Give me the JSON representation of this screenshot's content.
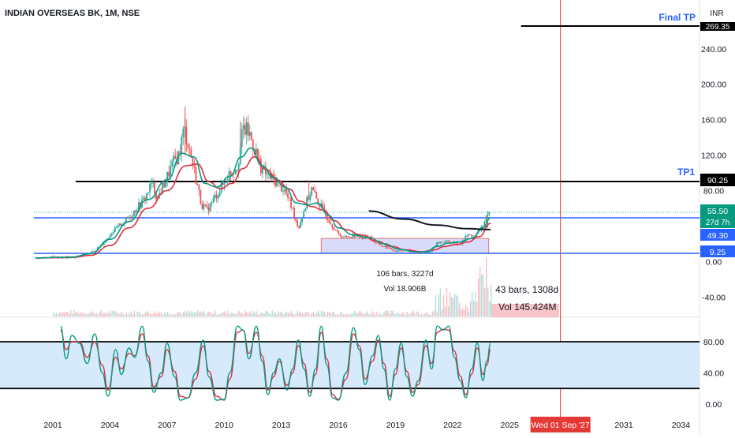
{
  "header": {
    "title": "INDIAN OVERSEAS BK, 1M, NSE",
    "currency": "INR"
  },
  "colors": {
    "up": "#26a69a",
    "down": "#ef5350",
    "ma_fast": "#089981",
    "ma_slow": "#e0303f",
    "blue_line": "#2962ff",
    "text_blue": "#2962ff",
    "cursor": "#e53935",
    "rsi_fill": "#d6eafc",
    "date_badge": "#e53935"
  },
  "annotations": {
    "final_tp_label": "Final TP",
    "final_tp_value": "269.35",
    "tp1_label": "TP1",
    "tp1_value": "90.25",
    "price_now": "55.50",
    "countdown": "27d 7h",
    "ma_value": "49.30",
    "support_value": "9.25",
    "range1_bars": "106 bars, 3227d",
    "range1_vol": "Vol 18.906B",
    "range2_bars": "43 bars, 1308d",
    "range2_vol": "Vol 145.424M",
    "crosshair_date": "Wed 01 Sep '27"
  },
  "chart_data": [
    {
      "type": "candlestick",
      "title": "INDIAN OVERSEAS BK, 1M, NSE",
      "x_ticks": [
        "2001",
        "2004",
        "2007",
        "2010",
        "2013",
        "2016",
        "2019",
        "2022",
        "2025",
        "2031",
        "2034"
      ],
      "y_ticks": [
        "240.00",
        "200.00",
        "160.00",
        "120.00",
        "80.00",
        "0.00",
        "-40.00"
      ],
      "ylim": [
        -62,
        290
      ],
      "xlim": [
        2000.0,
        2035.4
      ],
      "price_path": [
        [
          2000.1,
          4
        ],
        [
          2001.0,
          5
        ],
        [
          2001.6,
          4.5
        ],
        [
          2002.2,
          5
        ],
        [
          2002.8,
          8
        ],
        [
          2003.2,
          12
        ],
        [
          2003.7,
          22
        ],
        [
          2004.1,
          33
        ],
        [
          2004.5,
          40
        ],
        [
          2005.0,
          50
        ],
        [
          2005.4,
          60
        ],
        [
          2005.8,
          70
        ],
        [
          2006.2,
          88
        ],
        [
          2006.5,
          72
        ],
        [
          2006.9,
          90
        ],
        [
          2007.3,
          110
        ],
        [
          2007.6,
          120
        ],
        [
          2007.9,
          150
        ],
        [
          2008.2,
          125
        ],
        [
          2008.5,
          95
        ],
        [
          2008.8,
          65
        ],
        [
          2009.1,
          58
        ],
        [
          2009.5,
          72
        ],
        [
          2009.9,
          85
        ],
        [
          2010.3,
          100
        ],
        [
          2010.7,
          108
        ],
        [
          2011.0,
          150
        ],
        [
          2011.3,
          145
        ],
        [
          2011.6,
          128
        ],
        [
          2011.9,
          108
        ],
        [
          2012.2,
          98
        ],
        [
          2012.6,
          92
        ],
        [
          2012.9,
          86
        ],
        [
          2013.2,
          80
        ],
        [
          2013.6,
          58
        ],
        [
          2013.9,
          38
        ],
        [
          2014.3,
          65
        ],
        [
          2014.6,
          82
        ],
        [
          2014.9,
          68
        ],
        [
          2015.2,
          58
        ],
        [
          2015.6,
          44
        ],
        [
          2016.0,
          30
        ],
        [
          2016.4,
          27
        ],
        [
          2016.8,
          30
        ],
        [
          2017.2,
          27
        ],
        [
          2017.6,
          29
        ],
        [
          2018.0,
          20
        ],
        [
          2018.5,
          16
        ],
        [
          2019.0,
          12
        ],
        [
          2019.5,
          13
        ],
        [
          2020.0,
          11
        ],
        [
          2020.4,
          9
        ],
        [
          2020.8,
          11
        ],
        [
          2021.2,
          21
        ],
        [
          2021.6,
          23
        ],
        [
          2022.0,
          21
        ],
        [
          2022.4,
          20
        ],
        [
          2022.8,
          30
        ],
        [
          2023.2,
          28
        ],
        [
          2023.6,
          42
        ],
        [
          2024.0,
          55.5
        ]
      ],
      "moving_average_fast": [
        [
          2000.1,
          4
        ],
        [
          2002.0,
          5
        ],
        [
          2003.0,
          9
        ],
        [
          2004.0,
          25
        ],
        [
          2005.0,
          45
        ],
        [
          2006.0,
          70
        ],
        [
          2007.0,
          92
        ],
        [
          2007.8,
          122
        ],
        [
          2008.4,
          118
        ],
        [
          2009.0,
          88
        ],
        [
          2009.6,
          84
        ],
        [
          2010.3,
          96
        ],
        [
          2010.9,
          118
        ],
        [
          2011.4,
          128
        ],
        [
          2012.0,
          108
        ],
        [
          2012.6,
          95
        ],
        [
          2013.2,
          84
        ],
        [
          2013.8,
          66
        ],
        [
          2014.4,
          64
        ],
        [
          2014.9,
          66
        ],
        [
          2015.5,
          52
        ],
        [
          2016.0,
          38
        ],
        [
          2016.8,
          30
        ],
        [
          2017.6,
          27
        ],
        [
          2018.4,
          20
        ],
        [
          2019.2,
          14
        ],
        [
          2020.0,
          11
        ],
        [
          2020.6,
          11
        ],
        [
          2021.2,
          17
        ],
        [
          2021.8,
          21
        ],
        [
          2022.4,
          22
        ],
        [
          2023.0,
          26
        ],
        [
          2023.6,
          38
        ],
        [
          2024.0,
          49.3
        ]
      ],
      "moving_average_slow": [
        [
          2000.1,
          4
        ],
        [
          2002.0,
          4.5
        ],
        [
          2003.0,
          7
        ],
        [
          2004.0,
          18
        ],
        [
          2005.0,
          38
        ],
        [
          2006.0,
          60
        ],
        [
          2007.0,
          80
        ],
        [
          2008.0,
          108
        ],
        [
          2008.6,
          110
        ],
        [
          2009.2,
          90
        ],
        [
          2009.8,
          82
        ],
        [
          2010.4,
          88
        ],
        [
          2011.0,
          105
        ],
        [
          2011.6,
          118
        ],
        [
          2012.2,
          104
        ],
        [
          2012.8,
          92
        ],
        [
          2013.4,
          82
        ],
        [
          2014.0,
          68
        ],
        [
          2014.6,
          62
        ],
        [
          2015.2,
          58
        ],
        [
          2015.8,
          46
        ],
        [
          2016.4,
          36
        ],
        [
          2017.2,
          30
        ],
        [
          2018.0,
          23
        ],
        [
          2018.8,
          17
        ],
        [
          2019.6,
          13
        ],
        [
          2020.4,
          11
        ],
        [
          2021.0,
          13
        ],
        [
          2021.6,
          17
        ],
        [
          2022.2,
          19
        ],
        [
          2022.8,
          22
        ],
        [
          2023.4,
          28
        ],
        [
          2024.0,
          43
        ]
      ],
      "long_curve": [
        [
          2017.6,
          57
        ],
        [
          2019.4,
          48
        ],
        [
          2021.2,
          41
        ],
        [
          2022.8,
          37
        ],
        [
          2024.0,
          36
        ]
      ],
      "horizontal_lines": [
        {
          "label": "Final TP",
          "value": 269.35,
          "x_from": 2025.6
        },
        {
          "label": "TP1",
          "value": 90.25,
          "x_from": 2002.2
        },
        {
          "label": "",
          "value": 55.5,
          "x_from": 2000.0,
          "dotted": true
        },
        {
          "label": "",
          "value": 49.3,
          "x_from": 2000.0,
          "blue": true
        },
        {
          "label": "",
          "value": 9.25,
          "x_from": 2000.0,
          "blue": true
        }
      ],
      "ranges": [
        {
          "x": [
            2015.1,
            2023.9
          ],
          "y": [
            9.25,
            26
          ],
          "label": "106 bars, 3227d",
          "volume": "Vol 18.906B"
        },
        {
          "x": [
            2024.0,
            2027.6
          ],
          "y": [
            -54,
            -46
          ],
          "label": "43 bars, 1308d",
          "volume": "Vol 145.424M"
        }
      ],
      "crosshair_x": 2027.67
    },
    {
      "type": "line",
      "title": "",
      "y_ticks": [
        "80.00",
        "40.00",
        "0.00"
      ],
      "ylim": [
        -10,
        110
      ],
      "bands": [
        20,
        80
      ],
      "series_k": [
        [
          2001.4,
          100
        ],
        [
          2001.7,
          58
        ],
        [
          2002.0,
          88
        ],
        [
          2002.4,
          78
        ],
        [
          2002.8,
          52
        ],
        [
          2003.2,
          90
        ],
        [
          2003.6,
          40
        ],
        [
          2003.9,
          10
        ],
        [
          2004.3,
          70
        ],
        [
          2004.6,
          38
        ],
        [
          2005.0,
          72
        ],
        [
          2005.3,
          60
        ],
        [
          2005.7,
          100
        ],
        [
          2006.0,
          55
        ],
        [
          2006.3,
          15
        ],
        [
          2006.7,
          40
        ],
        [
          2007.0,
          78
        ],
        [
          2007.4,
          35
        ],
        [
          2007.7,
          5
        ],
        [
          2008.1,
          8
        ],
        [
          2008.5,
          40
        ],
        [
          2008.9,
          82
        ],
        [
          2009.2,
          35
        ],
        [
          2009.6,
          5
        ],
        [
          2010.0,
          6
        ],
        [
          2010.3,
          40
        ],
        [
          2010.7,
          100
        ],
        [
          2011.0,
          95
        ],
        [
          2011.3,
          58
        ],
        [
          2011.7,
          100
        ],
        [
          2012.0,
          55
        ],
        [
          2012.3,
          12
        ],
        [
          2012.6,
          40
        ],
        [
          2012.9,
          58
        ],
        [
          2013.3,
          18
        ],
        [
          2013.6,
          45
        ],
        [
          2013.9,
          82
        ],
        [
          2014.2,
          45
        ],
        [
          2014.5,
          10
        ],
        [
          2014.8,
          45
        ],
        [
          2015.1,
          100
        ],
        [
          2015.4,
          50
        ],
        [
          2015.7,
          8
        ],
        [
          2016.0,
          5
        ],
        [
          2016.4,
          40
        ],
        [
          2016.8,
          98
        ],
        [
          2017.1,
          70
        ],
        [
          2017.4,
          25
        ],
        [
          2017.8,
          62
        ],
        [
          2018.1,
          88
        ],
        [
          2018.4,
          45
        ],
        [
          2018.7,
          5
        ],
        [
          2019.0,
          45
        ],
        [
          2019.3,
          78
        ],
        [
          2019.6,
          35
        ],
        [
          2019.9,
          10
        ],
        [
          2020.2,
          30
        ],
        [
          2020.6,
          82
        ],
        [
          2020.9,
          45
        ],
        [
          2021.2,
          100
        ],
        [
          2021.5,
          95
        ],
        [
          2021.8,
          100
        ],
        [
          2022.1,
          60
        ],
        [
          2022.4,
          30
        ],
        [
          2022.7,
          8
        ],
        [
          2023.0,
          45
        ],
        [
          2023.3,
          78
        ],
        [
          2023.6,
          30
        ],
        [
          2023.8,
          55
        ],
        [
          2024.0,
          78
        ]
      ],
      "series_d": [
        [
          2001.4,
          95
        ],
        [
          2001.7,
          70
        ],
        [
          2002.0,
          80
        ],
        [
          2002.4,
          80
        ],
        [
          2002.8,
          60
        ],
        [
          2003.2,
          80
        ],
        [
          2003.6,
          50
        ],
        [
          2003.9,
          18
        ],
        [
          2004.3,
          60
        ],
        [
          2004.6,
          45
        ],
        [
          2005.0,
          65
        ],
        [
          2005.3,
          62
        ],
        [
          2005.7,
          90
        ],
        [
          2006.0,
          62
        ],
        [
          2006.3,
          22
        ],
        [
          2006.7,
          35
        ],
        [
          2007.0,
          70
        ],
        [
          2007.4,
          42
        ],
        [
          2007.7,
          10
        ],
        [
          2008.1,
          8
        ],
        [
          2008.5,
          32
        ],
        [
          2008.9,
          75
        ],
        [
          2009.2,
          42
        ],
        [
          2009.6,
          10
        ],
        [
          2010.0,
          5
        ],
        [
          2010.3,
          32
        ],
        [
          2010.7,
          92
        ],
        [
          2011.0,
          95
        ],
        [
          2011.3,
          65
        ],
        [
          2011.7,
          92
        ],
        [
          2012.0,
          62
        ],
        [
          2012.3,
          18
        ],
        [
          2012.6,
          35
        ],
        [
          2012.9,
          55
        ],
        [
          2013.3,
          24
        ],
        [
          2013.6,
          40
        ],
        [
          2013.9,
          75
        ],
        [
          2014.2,
          52
        ],
        [
          2014.5,
          15
        ],
        [
          2014.8,
          38
        ],
        [
          2015.1,
          92
        ],
        [
          2015.4,
          58
        ],
        [
          2015.7,
          12
        ],
        [
          2016.0,
          6
        ],
        [
          2016.4,
          32
        ],
        [
          2016.8,
          90
        ],
        [
          2017.1,
          75
        ],
        [
          2017.4,
          32
        ],
        [
          2017.8,
          55
        ],
        [
          2018.1,
          82
        ],
        [
          2018.4,
          52
        ],
        [
          2018.7,
          10
        ],
        [
          2019.0,
          38
        ],
        [
          2019.3,
          72
        ],
        [
          2019.6,
          42
        ],
        [
          2019.9,
          15
        ],
        [
          2020.2,
          25
        ],
        [
          2020.6,
          75
        ],
        [
          2020.9,
          52
        ],
        [
          2021.2,
          92
        ],
        [
          2021.5,
          96
        ],
        [
          2021.8,
          95
        ],
        [
          2022.1,
          68
        ],
        [
          2022.4,
          36
        ],
        [
          2022.7,
          12
        ],
        [
          2023.0,
          38
        ],
        [
          2023.3,
          72
        ],
        [
          2023.6,
          38
        ],
        [
          2023.8,
          50
        ],
        [
          2024.0,
          70
        ]
      ]
    }
  ]
}
